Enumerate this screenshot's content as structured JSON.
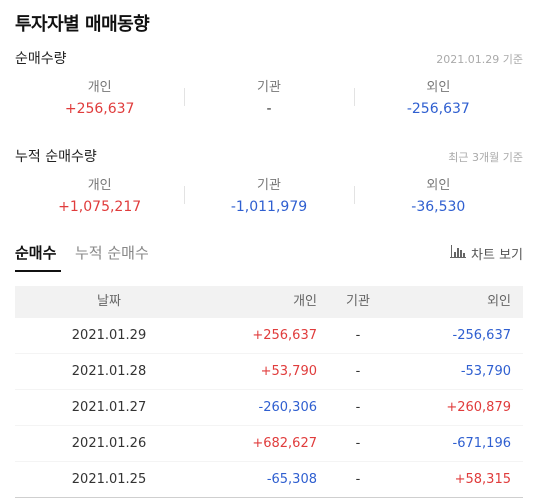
{
  "title": "투자자별 매매동향",
  "net_volume": {
    "heading": "순매수량",
    "note": "2021.01.29 기준",
    "individual": {
      "label": "개인",
      "value": "+256,637"
    },
    "institution": {
      "label": "기관",
      "value": "-"
    },
    "foreign": {
      "label": "외인",
      "value": "-256,637"
    }
  },
  "cumulative": {
    "heading": "누적 순매수량",
    "note": "최근 3개월 기준",
    "individual": {
      "label": "개인",
      "value": "+1,075,217"
    },
    "institution": {
      "label": "기관",
      "value": "-1,011,979"
    },
    "foreign": {
      "label": "외인",
      "value": "-36,530"
    }
  },
  "tabs": {
    "active": "순매수",
    "inactive": "누적 순매수",
    "chart_button": "차트 보기",
    "chart_icon": "bar-chart-icon"
  },
  "table": {
    "headers": {
      "date": "날짜",
      "individual": "개인",
      "institution": "기관",
      "foreign": "외인"
    },
    "rows": [
      {
        "date": "2021.01.29",
        "individual": "+256,637",
        "institution": "-",
        "foreign": "-256,637"
      },
      {
        "date": "2021.01.28",
        "individual": "+53,790",
        "institution": "-",
        "foreign": "-53,790"
      },
      {
        "date": "2021.01.27",
        "individual": "-260,306",
        "institution": "-",
        "foreign": "+260,879"
      },
      {
        "date": "2021.01.26",
        "individual": "+682,627",
        "institution": "-",
        "foreign": "-671,196"
      },
      {
        "date": "2021.01.25",
        "individual": "-65,308",
        "institution": "-",
        "foreign": "+58,315"
      }
    ]
  },
  "colors": {
    "positive": "#e03c3c",
    "negative": "#2f5fd0",
    "neutral": "#333333"
  }
}
